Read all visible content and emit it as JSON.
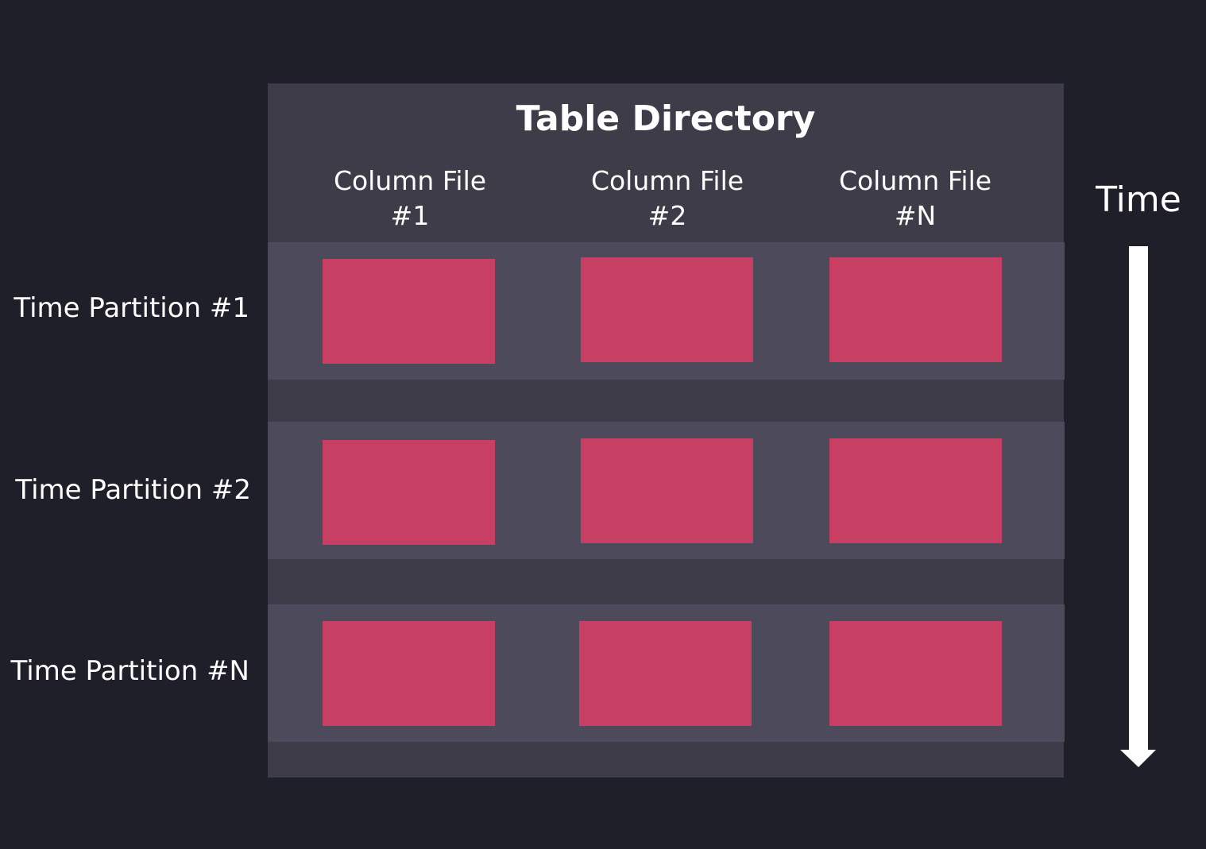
{
  "title": "Table Directory",
  "columns": [
    "Column File\n#1",
    "Column File\n#2",
    "Column File\n#N"
  ],
  "column_lines": [
    [
      "Column File",
      "#1"
    ],
    [
      "Column File",
      "#2"
    ],
    [
      "Column File",
      "#N"
    ]
  ],
  "partitions": [
    "Time Partition #1",
    "Time Partition #2",
    "Time Partition #N"
  ],
  "axis_label": "Time",
  "colors": {
    "background": "#1e1f28",
    "table": "#3d3c48",
    "partition": "#4d4a5c",
    "column_block": "#c73f63",
    "arrow": "#ffffff"
  }
}
